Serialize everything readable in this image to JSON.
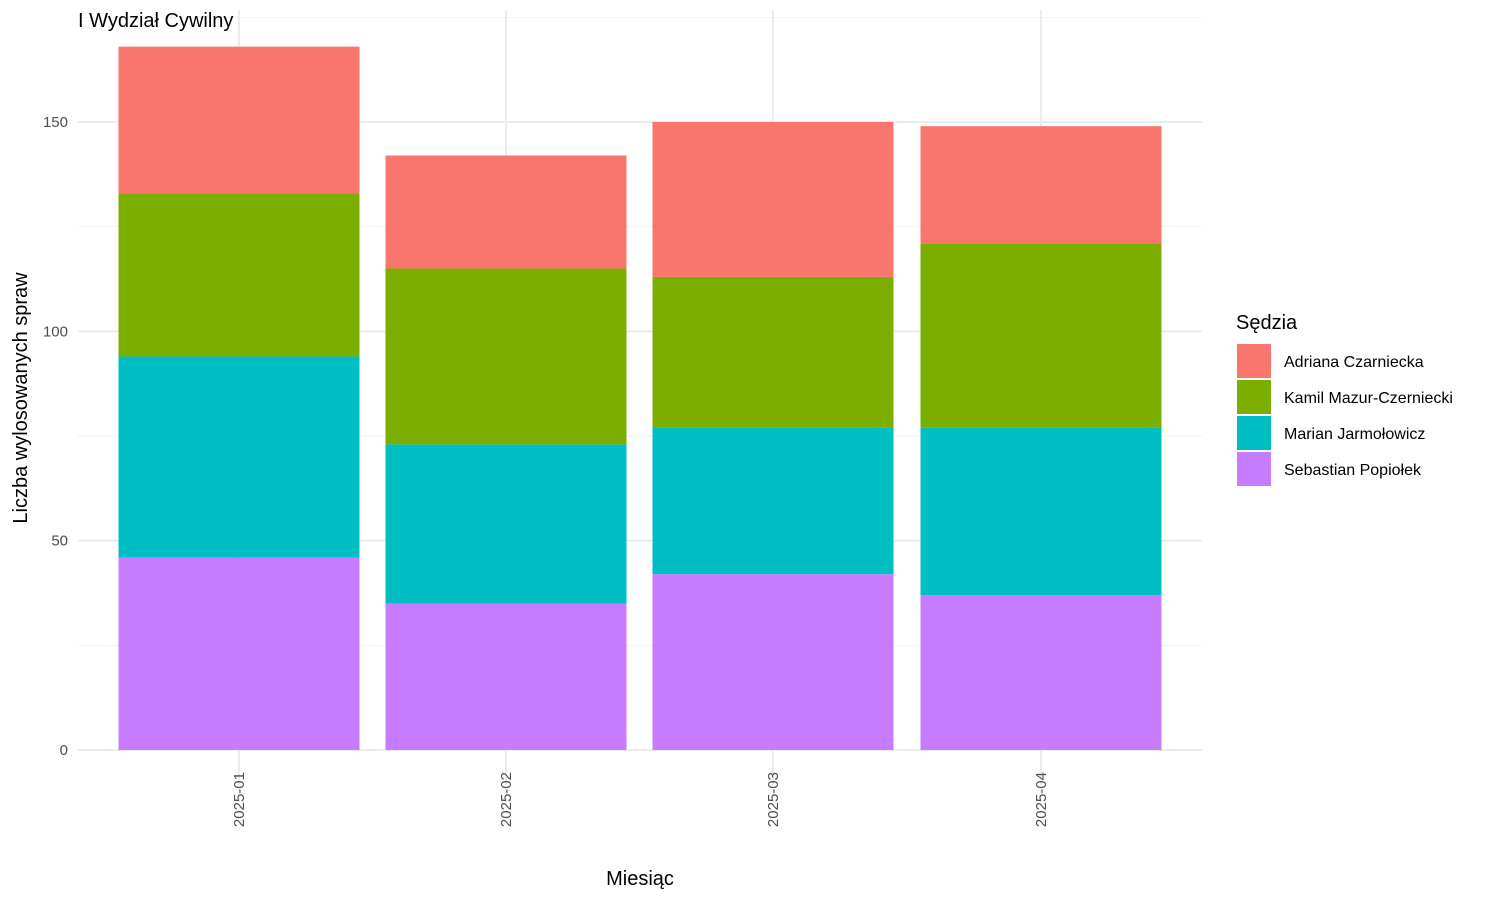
{
  "chart_data": {
    "type": "bar",
    "stacked": true,
    "title": "I Wydział Cywilny",
    "xlabel": "Miesiąc",
    "ylabel": "Liczba wylosowanych spraw",
    "ylim": [
      0,
      168
    ],
    "y_ticks": [
      0,
      50,
      100,
      150
    ],
    "categories": [
      "2025-01",
      "2025-02",
      "2025-03",
      "2025-04"
    ],
    "legend": {
      "title": "Sędzia",
      "position": "right"
    },
    "grid": true,
    "series": [
      {
        "name": "Sebastian Popiołek",
        "color": "#C77CFF",
        "values": [
          46,
          35,
          42,
          37
        ]
      },
      {
        "name": "Marian Jarmołowicz",
        "color": "#00BFC4",
        "values": [
          48,
          38,
          35,
          40
        ]
      },
      {
        "name": "Kamil Mazur-Czerniecki",
        "color": "#7CAE00",
        "values": [
          39,
          42,
          36,
          44
        ]
      },
      {
        "name": "Adriana Czarniecka",
        "color": "#F8766D",
        "values": [
          35,
          27,
          37,
          28
        ]
      }
    ],
    "legend_order": [
      "Adriana Czarniecka",
      "Kamil Mazur-Czerniecki",
      "Marian Jarmołowicz",
      "Sebastian Popiołek"
    ]
  }
}
